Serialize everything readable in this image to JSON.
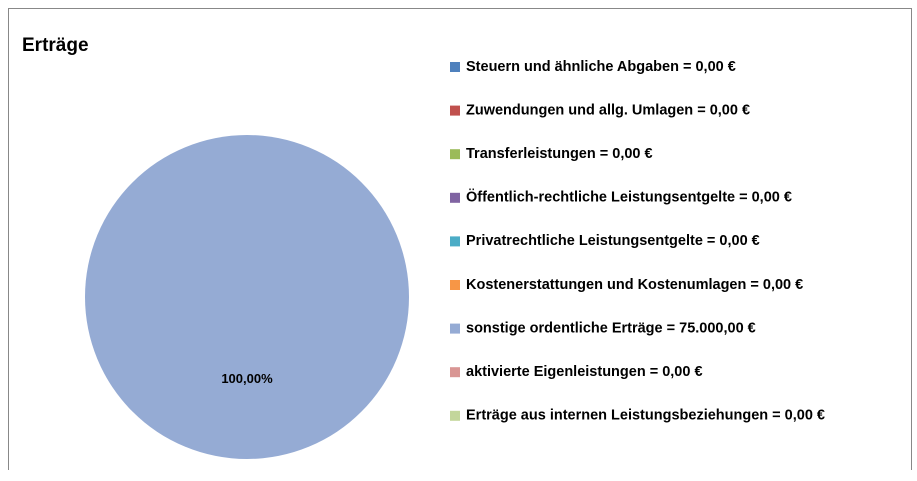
{
  "chart_data": {
    "type": "pie",
    "title": "Erträge",
    "categories": [
      "Steuern und ähnliche Abgaben = 0,00 €",
      "Zuwendungen und allg. Umlagen = 0,00 €",
      "Transferleistungen = 0,00 €",
      "Öffentlich-rechtliche Leistungsentgelte = 0,00 €",
      "Privatrechtliche Leistungsentgelte = 0,00 €",
      "Kostenerstattungen und Kostenumlagen = 0,00 €",
      "sonstige ordentliche Erträge = 75.000,00 €",
      "aktivierte Eigenleistungen = 0,00 €",
      "Erträge aus internen Leistungsbeziehungen = 0,00 €"
    ],
    "values": [
      0,
      0,
      0,
      0,
      0,
      0,
      100,
      0,
      0
    ],
    "value_labels": [
      null,
      null,
      null,
      null,
      null,
      null,
      "100,00%",
      null,
      null
    ],
    "colors": [
      "#4f81bd",
      "#c0504d",
      "#9bbb59",
      "#8064a2",
      "#4bacc6",
      "#f79646",
      "#95abd4",
      "#d99694",
      "#c3d69b"
    ],
    "legend": "right"
  }
}
